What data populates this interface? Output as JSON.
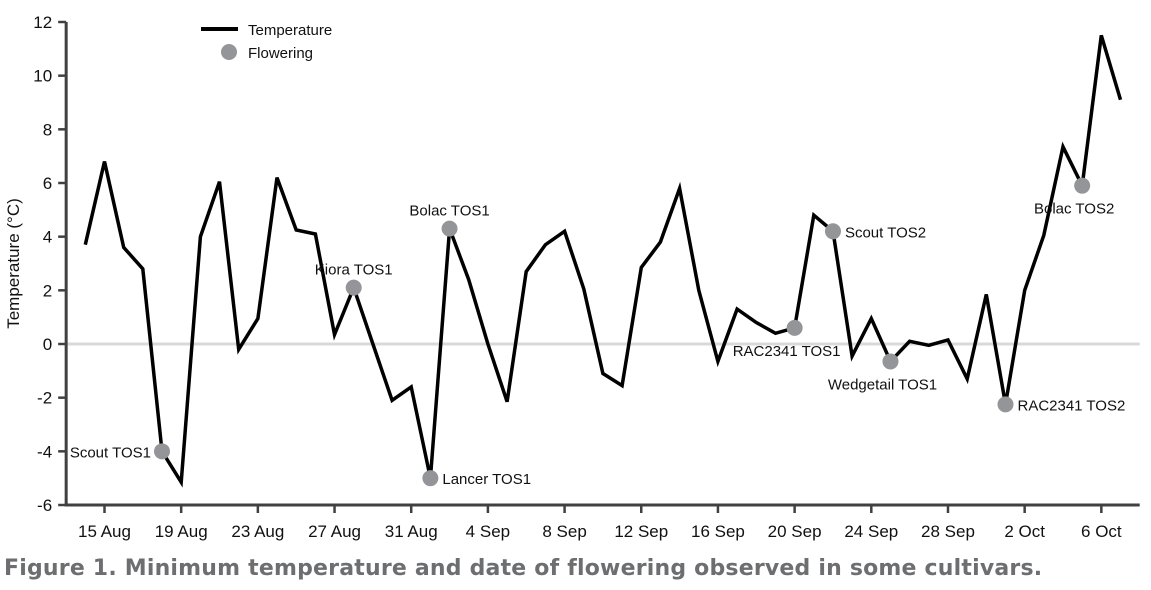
{
  "caption": "Figure 1. Minimum temperature and date of flowering observed in some cultivars.",
  "chart_data": {
    "type": "line",
    "title": "",
    "xlabel": "",
    "ylabel": "Temperature (°C)",
    "ylim": [
      -6,
      12
    ],
    "yticks": [
      12,
      10,
      8,
      6,
      4,
      2,
      0,
      -2,
      -4,
      -6
    ],
    "xlim": [
      "2023-08-13",
      "2023-10-08"
    ],
    "xticks": [
      {
        "date": "2023-08-15",
        "label": "15 Aug"
      },
      {
        "date": "2023-08-19",
        "label": "19 Aug"
      },
      {
        "date": "2023-08-23",
        "label": "23 Aug"
      },
      {
        "date": "2023-08-27",
        "label": "27 Aug"
      },
      {
        "date": "2023-08-31",
        "label": "31 Aug"
      },
      {
        "date": "2023-09-04",
        "label": "4 Sep"
      },
      {
        "date": "2023-09-08",
        "label": "8 Sep"
      },
      {
        "date": "2023-09-12",
        "label": "12 Sep"
      },
      {
        "date": "2023-09-16",
        "label": "16 Sep"
      },
      {
        "date": "2023-09-20",
        "label": "20 Sep"
      },
      {
        "date": "2023-09-24",
        "label": "24 Sep"
      },
      {
        "date": "2023-09-28",
        "label": "28 Sep"
      },
      {
        "date": "2023-10-02",
        "label": "2 Oct"
      },
      {
        "date": "2023-10-06",
        "label": "6 Oct"
      }
    ],
    "grid": false,
    "zero_line": true,
    "legend": {
      "placement": "top-left",
      "entries": [
        "Temperature",
        "Flowering"
      ]
    },
    "colors": {
      "line": "#000000",
      "marker": "#939598",
      "zero_line": "#d9d9d9",
      "axis": "#404040",
      "caption": "#6d6e70"
    },
    "series": [
      {
        "name": "Temperature",
        "start_date": "2023-08-14",
        "values": [
          3.7,
          6.8,
          3.6,
          2.8,
          -4.0,
          -5.15,
          4.0,
          6.05,
          -0.2,
          0.95,
          6.2,
          4.25,
          4.1,
          0.35,
          2.1,
          0.0,
          -2.1,
          -1.6,
          -5.0,
          4.3,
          2.4,
          0.0,
          -2.15,
          2.7,
          3.7,
          4.2,
          2.05,
          -1.1,
          -1.55,
          2.85,
          3.8,
          5.8,
          2.0,
          -0.65,
          1.3,
          0.8,
          0.4,
          0.6,
          4.8,
          4.2,
          -0.45,
          0.95,
          -0.65,
          0.1,
          -0.05,
          0.15,
          -1.3,
          1.85,
          -2.25,
          2.0,
          4.05,
          7.35,
          5.9,
          11.5,
          9.1
        ]
      }
    ],
    "flowering": [
      {
        "date": "2023-08-18",
        "value": -4.0,
        "label": "Scout TOS1",
        "side": "left"
      },
      {
        "date": "2023-08-28",
        "value": 2.1,
        "label": "Kiora TOS1",
        "side": "above"
      },
      {
        "date": "2023-09-01",
        "value": -5.0,
        "label": "Lancer TOS1",
        "side": "right"
      },
      {
        "date": "2023-09-02",
        "value": 4.3,
        "label": "Bolac TOS1",
        "side": "above"
      },
      {
        "date": "2023-09-20",
        "value": 0.6,
        "label": "RAC2341 TOS1",
        "side": "below"
      },
      {
        "date": "2023-09-22",
        "value": 4.2,
        "label": "Scout TOS2",
        "side": "right"
      },
      {
        "date": "2023-09-25",
        "value": -0.65,
        "label": "Wedgetail TOS1",
        "side": "below"
      },
      {
        "date": "2023-10-01",
        "value": -2.25,
        "label": "RAC2341 TOS2",
        "side": "right"
      },
      {
        "date": "2023-10-05",
        "value": 5.9,
        "label": "Bolac TOS2",
        "side": "below"
      }
    ]
  }
}
